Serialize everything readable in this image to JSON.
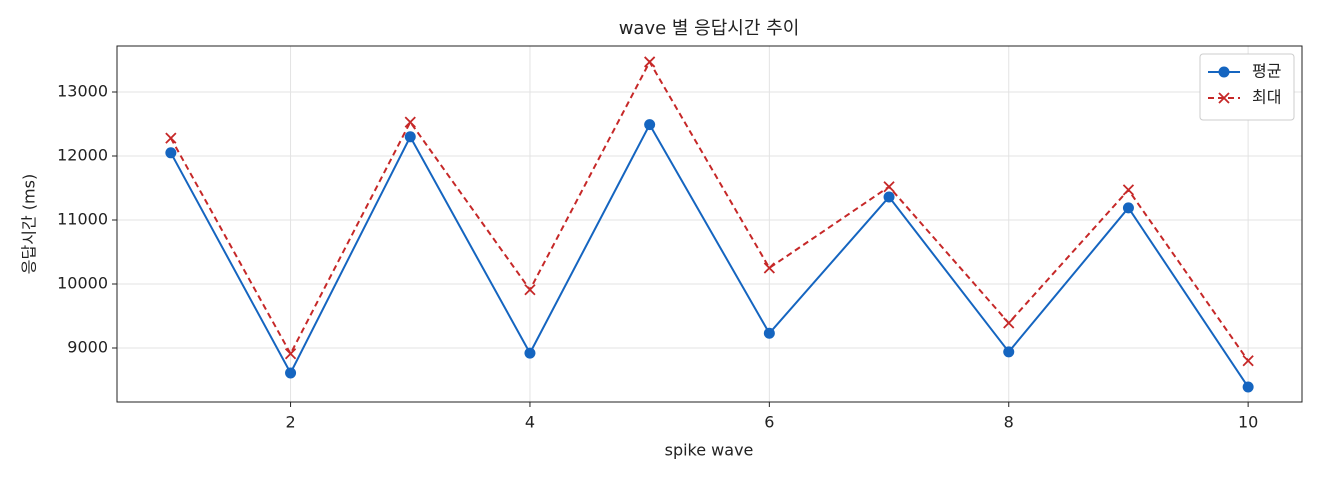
{
  "chart_data": {
    "type": "line",
    "title": "wave 별 응답시간 추이",
    "x_label": "spike wave",
    "y_label": "응답시간 (ms)",
    "x": [
      1,
      2,
      3,
      4,
      5,
      6,
      7,
      8,
      9,
      10
    ],
    "series": [
      {
        "name": "평균",
        "color": "#1565c0",
        "marker": "o",
        "linestyle": "solid",
        "values": [
          12050,
          8610,
          12300,
          8920,
          12490,
          9230,
          11360,
          8940,
          11190,
          8390
        ]
      },
      {
        "name": "최대",
        "color": "#c62828",
        "marker": "x",
        "linestyle": "dashed",
        "values": [
          12280,
          8910,
          12530,
          9910,
          13470,
          10250,
          11520,
          9390,
          11470,
          8800
        ]
      }
    ],
    "xlim": [
      0.55,
      10.45
    ],
    "xticks": [
      2,
      4,
      6,
      8,
      10
    ],
    "ylim": [
      8156,
      13719
    ],
    "yticks": [
      9000,
      10000,
      11000,
      12000,
      13000
    ],
    "grid": true,
    "legend": "upper right"
  }
}
